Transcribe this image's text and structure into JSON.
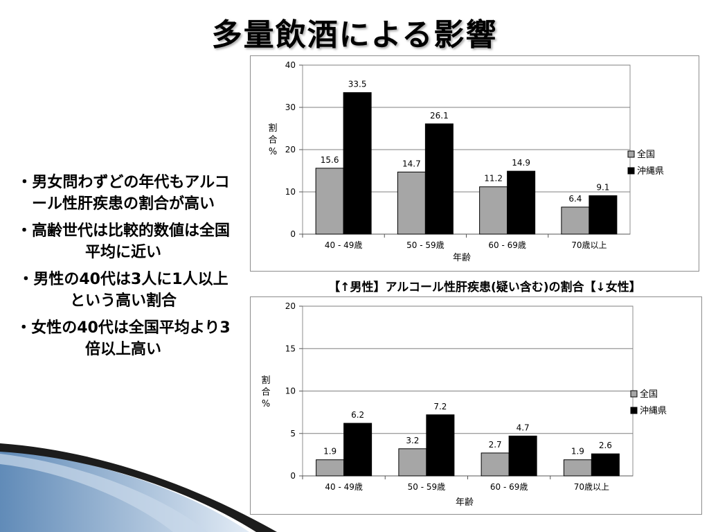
{
  "slide": {
    "title": "多量飲酒による影響",
    "caption": "【↑男性】アルコール性肝疾患(疑い含む)の割合【↓女性】",
    "bullets": [
      "・男女問わずどの年代もアルコール性肝疾患の割合が高い",
      "・高齢世代は比較的数値は全国平均に近い",
      "・男性の40代は3人に1人以上という高い割合",
      "・女性の40代は全国平均より3倍以上高い"
    ]
  },
  "colors": {
    "national": "#a6a6a6",
    "okinawa": "#000000",
    "gridline": "#7f7f7f"
  },
  "chart_data": [
    {
      "type": "bar",
      "title": "",
      "xlabel": "年齢",
      "ylabel": "割合%",
      "ylabel_chars": [
        "割",
        "合",
        "%"
      ],
      "categories": [
        "40 - 49歳",
        "50 - 59歳",
        "60 - 69歳",
        "70歳以上"
      ],
      "series": [
        {
          "name": "全国",
          "values": [
            15.6,
            14.7,
            11.2,
            6.4
          ],
          "labels": [
            "15.6",
            "14.7",
            "11.2",
            "6.4"
          ]
        },
        {
          "name": "沖縄県",
          "values": [
            33.5,
            26.1,
            14.9,
            9.1
          ],
          "labels": [
            "33.5",
            "26.1",
            "14.9",
            "9.1"
          ]
        }
      ],
      "ylim": [
        0,
        40
      ],
      "yticks": [
        0,
        10,
        20,
        30,
        40
      ],
      "grid": true,
      "legend": "right"
    },
    {
      "type": "bar",
      "title": "",
      "xlabel": "年齢",
      "ylabel": "割合%",
      "ylabel_chars": [
        "割",
        "合",
        "%"
      ],
      "categories": [
        "40 - 49歳",
        "50 - 59歳",
        "60 - 69歳",
        "70歳以上"
      ],
      "series": [
        {
          "name": "全国",
          "values": [
            1.9,
            3.2,
            2.7,
            1.9
          ],
          "labels": [
            "1.9",
            "3.2",
            "2.7",
            "1.9"
          ]
        },
        {
          "name": "沖縄県",
          "values": [
            6.2,
            7.2,
            4.7,
            2.6
          ],
          "labels": [
            "6.2",
            "7.2",
            "4.7",
            "2.6"
          ]
        }
      ],
      "ylim": [
        0,
        20
      ],
      "yticks": [
        0,
        5,
        10,
        15,
        20
      ],
      "grid": true,
      "legend": "right"
    }
  ]
}
